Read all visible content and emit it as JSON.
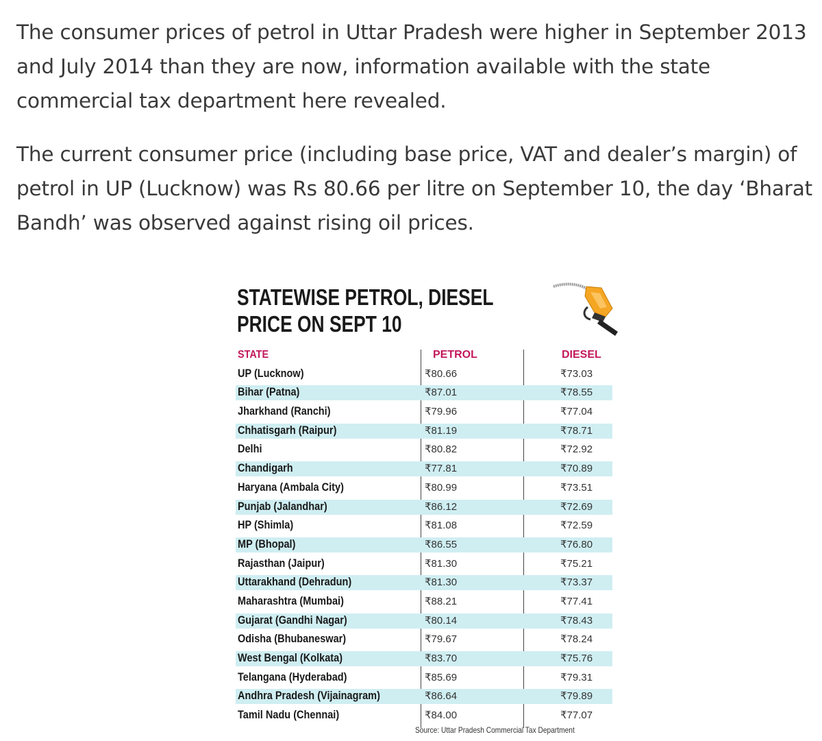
{
  "article": {
    "paragraphs": [
      "The consumer prices of petrol in Uttar Pradesh were higher in September 2013 and July 2014 than they are now, information available with the state commercial tax department here revealed.",
      "The current consumer price (including base price, VAT and dealer’s margin) of petrol in UP (Lucknow) was Rs 80.66 per litre on September 10, the day ‘Bharat Bandh’ was observed against rising oil prices."
    ]
  },
  "infographic": {
    "title_line1": "STATEWISE PETROL, DIESEL",
    "title_line2": "PRICE ON SEPT 10",
    "icon": "fuel-nozzle-icon",
    "colors": {
      "header": "#c2185b",
      "row_shade": "#cfeef2",
      "nozzle": "#f5a623"
    },
    "headers": {
      "state": "STATE",
      "petrol": "PETROL",
      "diesel": "DIESEL"
    },
    "rows": [
      {
        "state": "UP (Lucknow)",
        "petrol": "₹80.66",
        "diesel": "₹73.03"
      },
      {
        "state": "Bihar (Patna)",
        "petrol": "₹87.01",
        "diesel": "₹78.55"
      },
      {
        "state": "Jharkhand (Ranchi)",
        "petrol": "₹79.96",
        "diesel": "₹77.04"
      },
      {
        "state": "Chhatisgarh (Raipur)",
        "petrol": "₹81.19",
        "diesel": "₹78.71"
      },
      {
        "state": "Delhi",
        "petrol": "₹80.82",
        "diesel": "₹72.92"
      },
      {
        "state": "Chandigarh",
        "petrol": "₹77.81",
        "diesel": "₹70.89"
      },
      {
        "state": "Haryana (Ambala City)",
        "petrol": "₹80.99",
        "diesel": "₹73.51"
      },
      {
        "state": "Punjab (Jalandhar)",
        "petrol": "₹86.12",
        "diesel": "₹72.69"
      },
      {
        "state": "HP (Shimla)",
        "petrol": "₹81.08",
        "diesel": "₹72.59"
      },
      {
        "state": "MP (Bhopal)",
        "petrol": "₹86.55",
        "diesel": "₹76.80"
      },
      {
        "state": "Rajasthan (Jaipur)",
        "petrol": "₹81.30",
        "diesel": "₹75.21"
      },
      {
        "state": "Uttarakhand (Dehradun)",
        "petrol": "₹81.30",
        "diesel": "₹73.37"
      },
      {
        "state": "Maharashtra (Mumbai)",
        "petrol": "₹88.21",
        "diesel": "₹77.41"
      },
      {
        "state": "Gujarat (Gandhi Nagar)",
        "petrol": "₹80.14",
        "diesel": "₹78.43"
      },
      {
        "state": "Odisha (Bhubaneswar)",
        "petrol": "₹79.67",
        "diesel": "₹78.24"
      },
      {
        "state": "West Bengal (Kolkata)",
        "petrol": "₹83.70",
        "diesel": "₹75.76"
      },
      {
        "state": "Telangana (Hyderabad)",
        "petrol": "₹85.69",
        "diesel": "₹79.31"
      },
      {
        "state": "Andhra Pradesh (Vijainagram)",
        "petrol": "₹86.64",
        "diesel": "₹79.89"
      },
      {
        "state": "Tamil Nadu (Chennai)",
        "petrol": "₹84.00",
        "diesel": "₹77.07"
      }
    ],
    "source": "Source: Uttar Pradesh Commercial Tax Department"
  }
}
